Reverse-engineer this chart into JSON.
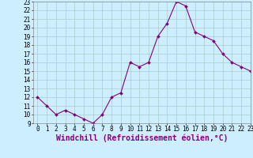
{
  "x": [
    0,
    1,
    2,
    3,
    4,
    5,
    6,
    7,
    8,
    9,
    10,
    11,
    12,
    13,
    14,
    15,
    16,
    17,
    18,
    19,
    20,
    21,
    22,
    23
  ],
  "y": [
    12,
    11,
    10,
    10.5,
    10,
    9.5,
    9,
    10,
    12,
    12.5,
    16,
    15.5,
    16,
    19,
    20.5,
    23,
    22.5,
    19.5,
    19,
    18.5,
    17,
    16,
    15.5,
    15
  ],
  "line_color": "#800080",
  "marker_color": "#800080",
  "bg_color": "#cceeff",
  "grid_color": "#aacccc",
  "xlabel": "Windchill (Refroidissement éolien,°C)",
  "ylim": [
    9,
    23
  ],
  "xlim": [
    -0.5,
    23
  ],
  "yticks": [
    9,
    10,
    11,
    12,
    13,
    14,
    15,
    16,
    17,
    18,
    19,
    20,
    21,
    22,
    23
  ],
  "xticks": [
    0,
    1,
    2,
    3,
    4,
    5,
    6,
    7,
    8,
    9,
    10,
    11,
    12,
    13,
    14,
    15,
    16,
    17,
    18,
    19,
    20,
    21,
    22,
    23
  ],
  "xlabel_fontsize": 7,
  "tick_fontsize": 5.5,
  "marker_size": 2,
  "line_width": 0.8
}
